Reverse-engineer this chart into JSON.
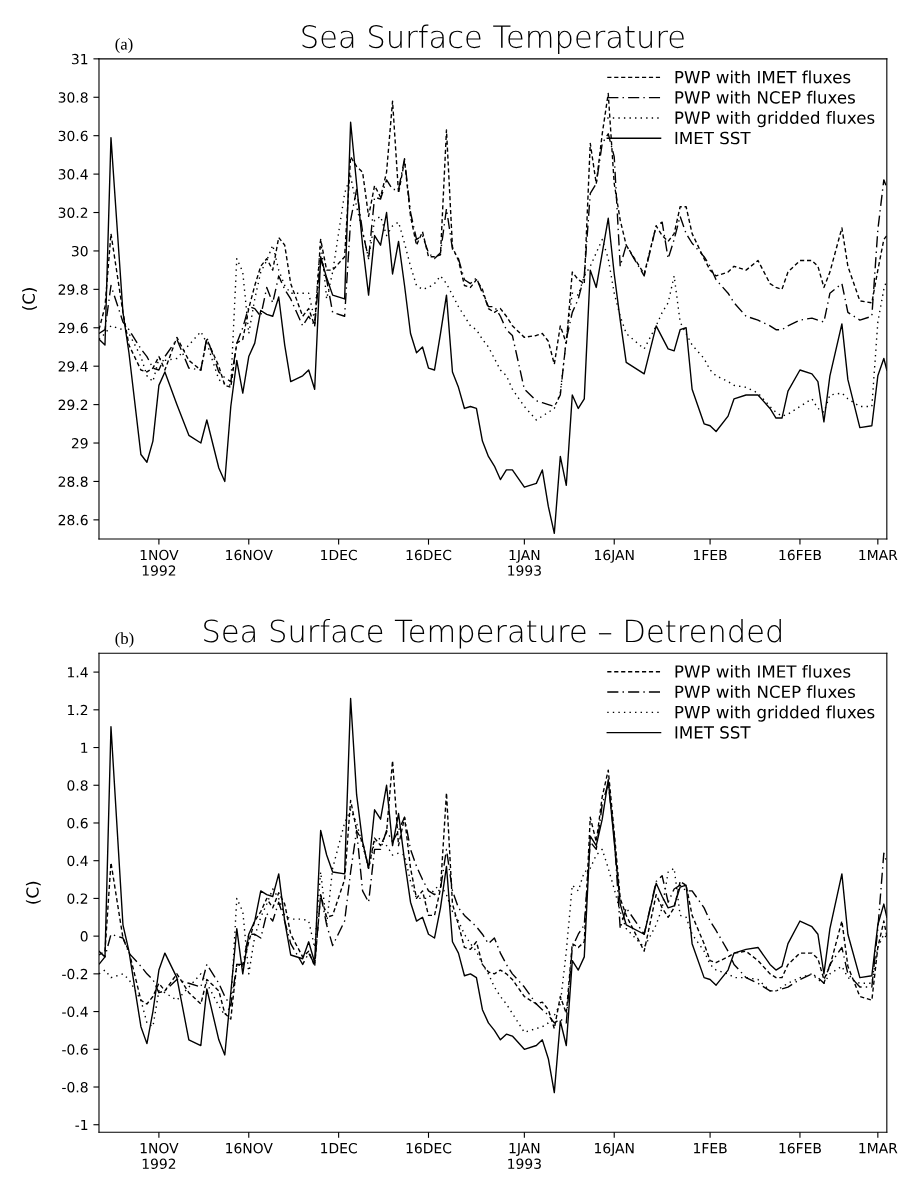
{
  "chart_data": [
    {
      "type": "line",
      "title": "Sea Surface Temperature",
      "ylabel": "(C)",
      "annotations": [
        "(a)"
      ],
      "x": [
        "1992-10-22",
        "1992-10-23",
        "1992-10-24",
        "1992-10-26",
        "1992-10-27",
        "1992-10-29",
        "1992-10-30",
        "1992-10-31",
        "1992-11-01",
        "1992-11-02",
        "1992-11-04",
        "1992-11-06",
        "1992-11-08",
        "1992-11-09",
        "1992-11-11",
        "1992-11-12",
        "1992-11-13",
        "1992-11-14",
        "1992-11-15",
        "1992-11-16",
        "1992-11-17",
        "1992-11-18",
        "1992-11-19",
        "1992-11-20",
        "1992-11-21",
        "1992-11-22",
        "1992-11-23",
        "1992-11-25",
        "1992-11-26",
        "1992-11-27",
        "1992-11-28",
        "1992-11-29",
        "1992-11-30",
        "1992-12-02",
        "1992-12-03",
        "1992-12-04",
        "1992-12-05",
        "1992-12-06",
        "1992-12-07",
        "1992-12-08",
        "1992-12-09",
        "1992-12-10",
        "1992-12-11",
        "1992-12-12",
        "1992-12-13",
        "1992-12-14",
        "1992-12-15",
        "1992-12-16",
        "1992-12-17",
        "1992-12-18",
        "1992-12-19",
        "1992-12-20",
        "1992-12-21",
        "1992-12-22",
        "1992-12-23",
        "1992-12-24",
        "1992-12-25",
        "1992-12-26",
        "1992-12-27",
        "1992-12-28",
        "1992-12-29",
        "1992-12-30",
        "1993-01-01",
        "1993-01-03",
        "1993-01-04",
        "1993-01-05",
        "1993-01-06",
        "1993-01-07",
        "1993-01-08",
        "1993-01-09",
        "1993-01-10",
        "1993-01-11",
        "1993-01-12",
        "1993-01-13",
        "1993-01-14",
        "1993-01-15",
        "1993-01-16",
        "1993-01-17",
        "1993-01-18",
        "1993-01-21",
        "1993-01-23",
        "1993-01-24",
        "1993-01-25",
        "1993-01-26",
        "1993-01-27",
        "1993-01-28",
        "1993-01-29",
        "1993-01-31",
        "1993-02-01",
        "1993-02-02",
        "1993-02-04",
        "1993-02-05",
        "1993-02-07",
        "1993-02-09",
        "1993-02-11",
        "1993-02-12",
        "1993-02-13",
        "1993-02-14",
        "1993-02-16",
        "1993-02-18",
        "1993-02-19",
        "1993-02-20",
        "1993-02-21",
        "1993-02-23",
        "1993-02-24",
        "1993-02-26",
        "1993-02-28",
        "1993-03-01",
        "1993-03-02",
        "1993-03-02T12:00"
      ],
      "series": [
        {
          "name": "PWP with IMET fluxes",
          "color": "#000000",
          "line_style": "dashed",
          "values": [
            29.59,
            29.71,
            30.09,
            29.68,
            29.51,
            29.38,
            29.37,
            29.39,
            29.45,
            29.38,
            29.55,
            29.43,
            29.38,
            29.54,
            29.4,
            29.3,
            29.29,
            29.52,
            29.54,
            29.7,
            29.82,
            29.92,
            29.96,
            29.9,
            30.07,
            30.03,
            29.83,
            29.66,
            29.7,
            29.61,
            30.06,
            29.9,
            29.9,
            29.97,
            30.49,
            30.44,
            30.41,
            30.18,
            30.34,
            30.28,
            30.41,
            30.78,
            30.3,
            30.47,
            30.18,
            30.03,
            30.1,
            29.97,
            29.97,
            29.98,
            30.63,
            30.02,
            29.95,
            29.82,
            29.81,
            29.85,
            29.8,
            29.7,
            29.68,
            29.7,
            29.66,
            29.61,
            29.55,
            29.56,
            29.57,
            29.53,
            29.41,
            29.61,
            29.52,
            29.89,
            29.85,
            29.83,
            30.56,
            30.35,
            30.61,
            30.82,
            30.35,
            30.16,
            30.03,
            29.88,
            30.13,
            30.08,
            30.05,
            30.09,
            30.23,
            30.23,
            30.09,
            29.96,
            29.9,
            29.87,
            29.89,
            29.92,
            29.9,
            29.95,
            29.83,
            29.81,
            29.8,
            29.89,
            29.95,
            29.95,
            29.92,
            29.81,
            29.89,
            30.12,
            29.92,
            29.74,
            29.73,
            29.9,
            30.06,
            30.08
          ]
        },
        {
          "name": "PWP with NCEP fluxes",
          "color": "#000000",
          "line_style": "dashdot",
          "values": [
            29.57,
            29.59,
            29.82,
            29.63,
            29.59,
            29.49,
            29.45,
            29.39,
            29.38,
            29.45,
            29.54,
            29.39,
            29.38,
            29.55,
            29.37,
            29.34,
            29.32,
            29.52,
            29.6,
            29.71,
            29.7,
            29.66,
            29.81,
            29.73,
            29.87,
            29.8,
            29.75,
            29.61,
            29.66,
            29.61,
            29.96,
            29.85,
            29.68,
            29.66,
            30.16,
            30.32,
            30.1,
            29.96,
            30.28,
            30.27,
            30.37,
            30.32,
            30.32,
            30.48,
            30.2,
            30.06,
            30.08,
            29.99,
            29.96,
            29.99,
            30.22,
            30.01,
            29.96,
            29.85,
            29.83,
            29.86,
            29.78,
            29.71,
            29.71,
            29.66,
            29.59,
            29.56,
            29.28,
            29.22,
            29.21,
            29.2,
            29.19,
            29.25,
            29.54,
            29.68,
            29.75,
            29.87,
            30.3,
            30.35,
            30.56,
            30.61,
            30.49,
            29.92,
            30.03,
            29.87,
            30.13,
            30.15,
            29.96,
            30.06,
            30.18,
            30.09,
            30.04,
            29.97,
            29.92,
            29.85,
            29.78,
            29.73,
            29.66,
            29.64,
            29.61,
            29.59,
            29.59,
            29.61,
            29.64,
            29.65,
            29.64,
            29.63,
            29.78,
            29.83,
            29.68,
            29.64,
            29.66,
            30.11,
            30.37,
            30.33
          ]
        },
        {
          "name": "PWP with gridded fluxes",
          "color": "#000000",
          "line_style": "dotted",
          "values": [
            29.54,
            29.57,
            29.61,
            29.59,
            29.57,
            29.45,
            29.35,
            29.32,
            29.44,
            29.43,
            29.44,
            29.51,
            29.58,
            29.52,
            29.33,
            29.31,
            29.3,
            29.96,
            29.89,
            29.57,
            29.75,
            29.89,
            29.95,
            30.03,
            29.9,
            29.82,
            29.78,
            29.78,
            29.78,
            29.64,
            30.06,
            29.75,
            29.89,
            30.3,
            30.39,
            30.23,
            30.1,
            29.96,
            30.16,
            30.18,
            30.08,
            30.13,
            30.15,
            30.04,
            29.92,
            29.82,
            29.8,
            29.81,
            29.83,
            29.87,
            29.83,
            29.77,
            29.71,
            29.66,
            29.61,
            29.59,
            29.54,
            29.5,
            29.44,
            29.38,
            29.35,
            29.28,
            29.19,
            29.12,
            29.14,
            29.16,
            29.18,
            29.26,
            29.54,
            29.78,
            29.77,
            29.87,
            29.92,
            29.99,
            30.06,
            29.96,
            29.78,
            29.66,
            29.57,
            29.49,
            29.61,
            29.68,
            29.73,
            29.87,
            29.63,
            29.57,
            29.51,
            29.44,
            29.38,
            29.35,
            29.32,
            29.3,
            29.29,
            29.26,
            29.19,
            29.16,
            29.14,
            29.15,
            29.19,
            29.23,
            29.18,
            29.16,
            29.25,
            29.26,
            29.23,
            29.19,
            29.19,
            29.63,
            29.8,
            29.85
          ]
        },
        {
          "name": "IMET SST",
          "color": "#000000",
          "line_style": "solid",
          "values": [
            29.54,
            29.51,
            30.59,
            29.68,
            29.47,
            28.94,
            28.9,
            29.01,
            29.3,
            29.37,
            29.2,
            29.04,
            29.0,
            29.12,
            28.87,
            28.8,
            29.19,
            29.43,
            29.26,
            29.45,
            29.52,
            29.69,
            29.67,
            29.66,
            29.76,
            29.51,
            29.32,
            29.35,
            29.38,
            29.28,
            29.97,
            29.86,
            29.77,
            29.75,
            30.67,
            30.35,
            30.03,
            29.77,
            30.08,
            30.03,
            30.2,
            29.88,
            30.05,
            29.82,
            29.57,
            29.47,
            29.5,
            29.39,
            29.38,
            29.57,
            29.77,
            29.37,
            29.29,
            29.18,
            29.19,
            29.18,
            29.01,
            28.93,
            28.88,
            28.81,
            28.86,
            28.86,
            28.77,
            28.79,
            28.86,
            28.67,
            28.53,
            28.93,
            28.78,
            29.25,
            29.18,
            29.23,
            29.9,
            29.81,
            29.99,
            30.17,
            29.88,
            29.64,
            29.42,
            29.36,
            29.61,
            29.55,
            29.49,
            29.48,
            29.59,
            29.6,
            29.28,
            29.1,
            29.09,
            29.06,
            29.14,
            29.23,
            29.25,
            29.25,
            29.18,
            29.13,
            29.13,
            29.27,
            29.38,
            29.36,
            29.32,
            29.11,
            29.35,
            29.62,
            29.33,
            29.08,
            29.09,
            29.35,
            29.44,
            29.38
          ]
        }
      ],
      "xlim": [
        "1992-10-22",
        "1993-03-02T12:00"
      ],
      "xticks": [
        {
          "value": "1992-11-01",
          "label": "1NOV\n1992"
        },
        {
          "value": "1992-11-16",
          "label": "16NOV"
        },
        {
          "value": "1992-12-01",
          "label": "1DEC"
        },
        {
          "value": "1992-12-16",
          "label": "16DEC"
        },
        {
          "value": "1993-01-01",
          "label": "1JAN\n1993"
        },
        {
          "value": "1993-01-16",
          "label": "16JAN"
        },
        {
          "value": "1993-02-01",
          "label": "1FEB"
        },
        {
          "value": "1993-02-16",
          "label": "16FEB"
        },
        {
          "value": "1993-03-01",
          "label": "1MAR"
        }
      ],
      "ylim": [
        28.5,
        31
      ],
      "yticks": [
        28.6,
        28.8,
        29,
        29.2,
        29.4,
        29.6,
        29.8,
        30,
        30.2,
        30.4,
        30.6,
        30.8,
        31
      ],
      "legend": "top right",
      "grid": false
    },
    {
      "type": "line",
      "title": "Sea Surface Temperature – Detrended",
      "ylabel": "(C)",
      "annotations": [
        "(b)"
      ],
      "x": [
        "1992-10-22",
        "1992-10-23",
        "1992-10-24",
        "1992-10-26",
        "1992-10-27",
        "1992-10-29",
        "1992-10-30",
        "1992-10-31",
        "1992-11-01",
        "1992-11-02",
        "1992-11-04",
        "1992-11-06",
        "1992-11-08",
        "1992-11-09",
        "1992-11-11",
        "1992-11-12",
        "1992-11-13",
        "1992-11-14",
        "1992-11-15",
        "1992-11-16",
        "1992-11-17",
        "1992-11-18",
        "1992-11-19",
        "1992-11-20",
        "1992-11-21",
        "1992-11-22",
        "1992-11-23",
        "1992-11-25",
        "1992-11-26",
        "1992-11-27",
        "1992-11-28",
        "1992-11-29",
        "1992-11-30",
        "1992-12-02",
        "1992-12-03",
        "1992-12-04",
        "1992-12-05",
        "1992-12-06",
        "1992-12-07",
        "1992-12-08",
        "1992-12-09",
        "1992-12-10",
        "1992-12-11",
        "1992-12-12",
        "1992-12-13",
        "1992-12-14",
        "1992-12-15",
        "1992-12-16",
        "1992-12-17",
        "1992-12-18",
        "1992-12-19",
        "1992-12-20",
        "1992-12-21",
        "1992-12-22",
        "1992-12-23",
        "1992-12-24",
        "1992-12-25",
        "1992-12-26",
        "1992-12-27",
        "1992-12-28",
        "1992-12-29",
        "1992-12-30",
        "1993-01-01",
        "1993-01-03",
        "1993-01-04",
        "1993-01-05",
        "1993-01-06",
        "1993-01-07",
        "1993-01-08",
        "1993-01-09",
        "1993-01-10",
        "1993-01-11",
        "1993-01-12",
        "1993-01-13",
        "1993-01-14",
        "1993-01-15",
        "1993-01-16",
        "1993-01-17",
        "1993-01-18",
        "1993-01-21",
        "1993-01-23",
        "1993-01-24",
        "1993-01-25",
        "1993-01-26",
        "1993-01-27",
        "1993-01-28",
        "1993-01-29",
        "1993-01-31",
        "1993-02-01",
        "1993-02-02",
        "1993-02-04",
        "1993-02-05",
        "1993-02-07",
        "1993-02-09",
        "1993-02-11",
        "1993-02-12",
        "1993-02-13",
        "1993-02-14",
        "1993-02-16",
        "1993-02-18",
        "1993-02-19",
        "1993-02-20",
        "1993-02-21",
        "1993-02-23",
        "1993-02-24",
        "1993-02-26",
        "1993-02-28",
        "1993-03-01",
        "1993-03-02",
        "1993-03-02T12:00"
      ],
      "series": [
        {
          "name": "PWP with IMET fluxes",
          "color": "#000000",
          "line_style": "dashed",
          "values": [
            -0.1,
            -0.08,
            0.39,
            -0.01,
            -0.08,
            -0.34,
            -0.36,
            -0.32,
            -0.25,
            -0.29,
            -0.2,
            -0.3,
            -0.36,
            -0.23,
            -0.29,
            -0.41,
            -0.44,
            -0.15,
            -0.16,
            -0.03,
            0.08,
            0.13,
            0.2,
            0.15,
            0.23,
            0.17,
            0.01,
            -0.11,
            -0.08,
            -0.16,
            0.22,
            0.1,
            0.11,
            0.3,
            0.72,
            0.56,
            0.5,
            0.36,
            0.52,
            0.48,
            0.55,
            0.93,
            0.48,
            0.63,
            0.36,
            0.2,
            0.24,
            0.11,
            0.11,
            0.25,
            0.76,
            0.17,
            0.06,
            -0.06,
            -0.07,
            -0.03,
            -0.15,
            -0.19,
            -0.2,
            -0.18,
            -0.2,
            -0.23,
            -0.32,
            -0.36,
            -0.35,
            -0.39,
            -0.49,
            -0.32,
            -0.41,
            -0.04,
            -0.06,
            -0.03,
            0.63,
            0.5,
            0.74,
            0.88,
            0.55,
            0.2,
            0.11,
            -0.08,
            0.22,
            0.15,
            0.1,
            0.15,
            0.29,
            0.27,
            0.11,
            -0.04,
            -0.13,
            -0.14,
            -0.11,
            -0.09,
            -0.08,
            -0.13,
            -0.2,
            -0.22,
            -0.22,
            -0.15,
            -0.09,
            -0.09,
            -0.12,
            -0.23,
            -0.16,
            0.08,
            -0.16,
            -0.32,
            -0.34,
            -0.06,
            0.08,
            0.0
          ]
        },
        {
          "name": "PWP with NCEP fluxes",
          "color": "#000000",
          "line_style": "dashdot",
          "values": [
            -0.15,
            -0.11,
            0.01,
            -0.01,
            -0.09,
            -0.16,
            -0.2,
            -0.23,
            -0.3,
            -0.29,
            -0.23,
            -0.25,
            -0.27,
            -0.15,
            -0.25,
            -0.32,
            -0.37,
            -0.15,
            -0.15,
            0.01,
            0.01,
            -0.01,
            0.12,
            0.08,
            0.18,
            0.08,
            -0.04,
            -0.15,
            -0.09,
            -0.15,
            0.22,
            0.06,
            -0.05,
            0.08,
            0.34,
            0.56,
            0.24,
            0.18,
            0.46,
            0.46,
            0.56,
            0.5,
            0.56,
            0.63,
            0.46,
            0.37,
            0.3,
            0.24,
            0.22,
            0.25,
            0.46,
            0.24,
            0.15,
            0.11,
            0.08,
            0.05,
            0.01,
            -0.04,
            -0.01,
            -0.09,
            -0.15,
            -0.2,
            -0.27,
            -0.36,
            -0.39,
            -0.42,
            -0.46,
            -0.44,
            -0.46,
            -0.06,
            0.01,
            0.06,
            0.5,
            0.46,
            0.7,
            0.81,
            0.53,
            0.04,
            0.15,
            0.01,
            0.29,
            0.32,
            0.18,
            0.25,
            0.27,
            0.24,
            0.24,
            0.15,
            0.08,
            0.03,
            -0.08,
            -0.15,
            -0.22,
            -0.25,
            -0.29,
            -0.29,
            -0.28,
            -0.27,
            -0.23,
            -0.2,
            -0.22,
            -0.25,
            -0.15,
            -0.06,
            -0.2,
            -0.27,
            -0.27,
            0.04,
            0.44,
            0.39
          ]
        },
        {
          "name": "PWP with gridded fluxes",
          "color": "#000000",
          "line_style": "dotted",
          "values": [
            -0.2,
            -0.18,
            -0.22,
            -0.2,
            -0.23,
            -0.34,
            -0.46,
            -0.48,
            -0.29,
            -0.3,
            -0.34,
            -0.27,
            -0.2,
            -0.25,
            -0.37,
            -0.42,
            -0.37,
            0.2,
            0.13,
            -0.2,
            0.0,
            0.1,
            0.17,
            0.25,
            0.2,
            0.11,
            0.09,
            0.09,
            0.08,
            -0.06,
            0.34,
            0.06,
            0.36,
            0.6,
            0.67,
            0.6,
            0.48,
            0.36,
            0.5,
            0.52,
            0.48,
            0.43,
            0.44,
            0.43,
            0.29,
            0.2,
            0.2,
            0.2,
            0.25,
            0.27,
            0.22,
            0.13,
            0.08,
            0.01,
            -0.04,
            -0.08,
            -0.15,
            -0.2,
            -0.27,
            -0.32,
            -0.36,
            -0.41,
            -0.51,
            -0.49,
            -0.48,
            -0.46,
            -0.42,
            -0.36,
            -0.08,
            0.27,
            0.24,
            0.34,
            0.36,
            0.43,
            0.46,
            0.36,
            0.25,
            0.13,
            0.04,
            -0.06,
            0.06,
            0.15,
            0.34,
            0.36,
            0.11,
            0.1,
            0.01,
            -0.08,
            -0.15,
            -0.18,
            -0.2,
            -0.22,
            -0.22,
            -0.23,
            -0.29,
            -0.29,
            -0.27,
            -0.25,
            -0.22,
            -0.2,
            -0.23,
            -0.25,
            -0.2,
            -0.16,
            -0.22,
            -0.25,
            -0.25,
            -0.06,
            0.01,
            -0.01
          ]
        },
        {
          "name": "IMET SST",
          "color": "#000000",
          "line_style": "solid",
          "values": [
            -0.08,
            -0.11,
            1.11,
            0.06,
            -0.08,
            -0.48,
            -0.57,
            -0.4,
            -0.18,
            -0.09,
            -0.22,
            -0.55,
            -0.58,
            -0.28,
            -0.55,
            -0.63,
            -0.3,
            0.04,
            -0.2,
            0.01,
            0.08,
            0.24,
            0.22,
            0.21,
            0.33,
            0.08,
            -0.1,
            -0.12,
            -0.03,
            -0.14,
            0.56,
            0.43,
            0.34,
            0.33,
            1.26,
            0.75,
            0.5,
            0.36,
            0.67,
            0.62,
            0.8,
            0.48,
            0.65,
            0.4,
            0.18,
            0.08,
            0.1,
            0.01,
            -0.01,
            0.15,
            0.37,
            -0.03,
            -0.09,
            -0.21,
            -0.2,
            -0.22,
            -0.39,
            -0.46,
            -0.5,
            -0.55,
            -0.52,
            -0.53,
            -0.6,
            -0.58,
            -0.55,
            -0.65,
            -0.83,
            -0.45,
            -0.58,
            -0.13,
            -0.18,
            -0.11,
            0.53,
            0.48,
            0.62,
            0.83,
            0.5,
            0.17,
            0.06,
            0.01,
            0.28,
            0.21,
            0.15,
            0.16,
            0.26,
            0.27,
            -0.04,
            -0.22,
            -0.23,
            -0.26,
            -0.18,
            -0.09,
            -0.07,
            -0.06,
            -0.15,
            -0.18,
            -0.16,
            -0.04,
            0.08,
            0.05,
            0.01,
            -0.2,
            0.04,
            0.33,
            0.01,
            -0.22,
            -0.21,
            0.06,
            0.17,
            0.1
          ]
        }
      ],
      "xlim": [
        "1992-10-22",
        "1993-03-02T12:00"
      ],
      "xticks": [
        {
          "value": "1992-11-01",
          "label": "1NOV\n1992"
        },
        {
          "value": "1992-11-16",
          "label": "16NOV"
        },
        {
          "value": "1992-12-01",
          "label": "1DEC"
        },
        {
          "value": "1992-12-16",
          "label": "16DEC"
        },
        {
          "value": "1993-01-01",
          "label": "1JAN\n1993"
        },
        {
          "value": "1993-01-16",
          "label": "16JAN"
        },
        {
          "value": "1993-02-01",
          "label": "1FEB"
        },
        {
          "value": "1993-02-16",
          "label": "16FEB"
        },
        {
          "value": "1993-03-01",
          "label": "1MAR"
        }
      ],
      "ylim": [
        -1.04,
        1.5
      ],
      "yticks": [
        -1,
        -0.8,
        -0.6,
        -0.4,
        -0.2,
        0,
        0.2,
        0.4,
        0.6,
        0.8,
        1,
        1.2,
        1.4
      ],
      "legend": "top right",
      "grid": false
    }
  ]
}
